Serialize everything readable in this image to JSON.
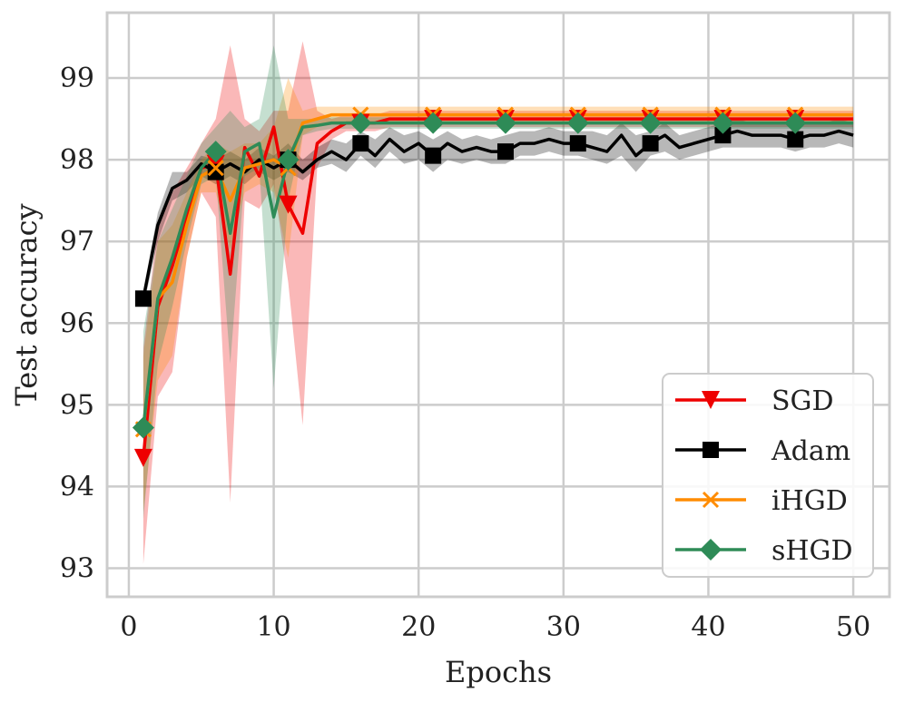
{
  "chart_data": {
    "type": "line",
    "title": "",
    "xlabel": "Epochs",
    "ylabel": "Test accuracy",
    "xlim": [
      -1.5,
      52.5
    ],
    "ylim": [
      92.65,
      99.8
    ],
    "xticks": [
      0,
      10,
      20,
      30,
      40,
      50
    ],
    "yticks": [
      93,
      94,
      95,
      96,
      97,
      98,
      99
    ],
    "grid": true,
    "legend": "lower-right",
    "x": [
      1,
      2,
      3,
      4,
      5,
      6,
      7,
      8,
      9,
      10,
      11,
      12,
      13,
      14,
      15,
      16,
      17,
      18,
      19,
      20,
      21,
      22,
      23,
      24,
      25,
      26,
      27,
      28,
      29,
      30,
      31,
      32,
      33,
      34,
      35,
      36,
      37,
      38,
      39,
      40,
      41,
      42,
      43,
      44,
      45,
      46,
      47,
      48,
      49,
      50
    ],
    "series": [
      {
        "name": "SGD",
        "color": "#ee0000",
        "marker": "triangle-down",
        "markevery": [
          1,
          6,
          11,
          16,
          21,
          26,
          31,
          36,
          41,
          46
        ],
        "values": [
          94.35,
          96.2,
          96.7,
          97.3,
          97.9,
          97.95,
          96.6,
          98.15,
          97.8,
          98.4,
          97.45,
          97.1,
          98.2,
          98.35,
          98.45,
          98.45,
          98.45,
          98.5,
          98.5,
          98.5,
          98.5,
          98.5,
          98.5,
          98.5,
          98.5,
          98.5,
          98.5,
          98.5,
          98.5,
          98.5,
          98.5,
          98.5,
          98.5,
          98.5,
          98.5,
          98.5,
          98.5,
          98.5,
          98.5,
          98.5,
          98.5,
          98.5,
          98.5,
          98.5,
          98.5,
          98.5,
          98.5,
          98.5,
          98.5,
          98.5
        ],
        "lower": [
          93.05,
          95.1,
          95.4,
          96.8,
          97.6,
          97.3,
          93.8,
          97.5,
          97.4,
          97.7,
          96.5,
          94.75,
          97.9,
          98.25,
          98.35,
          98.35,
          98.35,
          98.4,
          98.4,
          98.4,
          98.4,
          98.4,
          98.4,
          98.4,
          98.4,
          98.4,
          98.4,
          98.4,
          98.4,
          98.4,
          98.4,
          98.4,
          98.4,
          98.4,
          98.4,
          98.4,
          98.4,
          98.4,
          98.4,
          98.4,
          98.4,
          98.4,
          98.4,
          98.4,
          98.4,
          98.4,
          98.4,
          98.4,
          98.4,
          98.4
        ],
        "upper": [
          95.7,
          97.2,
          97.6,
          97.9,
          98.2,
          98.5,
          99.4,
          98.5,
          98.35,
          98.6,
          98.6,
          99.45,
          98.6,
          98.5,
          98.55,
          98.55,
          98.55,
          98.6,
          98.6,
          98.6,
          98.6,
          98.6,
          98.6,
          98.6,
          98.6,
          98.6,
          98.6,
          98.6,
          98.6,
          98.6,
          98.6,
          98.6,
          98.6,
          98.6,
          98.6,
          98.6,
          98.6,
          98.6,
          98.6,
          98.6,
          98.6,
          98.6,
          98.6,
          98.6,
          98.6,
          98.6,
          98.6,
          98.6,
          98.6,
          98.6
        ]
      },
      {
        "name": "Adam",
        "color": "#000000",
        "marker": "square",
        "markevery": [
          1,
          6,
          11,
          16,
          21,
          26,
          31,
          36,
          41,
          46
        ],
        "values": [
          96.3,
          97.2,
          97.65,
          97.75,
          97.95,
          97.85,
          97.95,
          97.85,
          98.0,
          97.9,
          98.0,
          97.85,
          98.0,
          98.1,
          98.0,
          98.2,
          98.05,
          98.25,
          98.1,
          98.2,
          98.05,
          98.2,
          98.1,
          98.15,
          98.1,
          98.1,
          98.2,
          98.2,
          98.25,
          98.2,
          98.2,
          98.15,
          98.1,
          98.3,
          98.05,
          98.2,
          98.3,
          98.15,
          98.2,
          98.25,
          98.3,
          98.35,
          98.3,
          98.3,
          98.3,
          98.25,
          98.3,
          98.3,
          98.35,
          98.3
        ],
        "lower": [
          96.2,
          97.0,
          97.5,
          97.6,
          97.8,
          97.7,
          97.8,
          97.7,
          97.85,
          97.75,
          97.85,
          97.75,
          97.9,
          97.95,
          97.85,
          98.05,
          97.9,
          98.1,
          97.95,
          98.0,
          97.85,
          98.0,
          97.95,
          98.0,
          97.95,
          97.95,
          98.05,
          98.05,
          98.1,
          98.05,
          98.05,
          98.0,
          97.95,
          98.05,
          97.85,
          98.05,
          98.1,
          98.0,
          98.05,
          98.1,
          98.15,
          98.15,
          98.15,
          98.15,
          98.15,
          98.1,
          98.15,
          98.15,
          98.2,
          98.15
        ],
        "upper": [
          96.4,
          97.35,
          97.85,
          97.85,
          98.05,
          98.0,
          98.1,
          98.0,
          98.15,
          98.05,
          98.2,
          98.0,
          98.15,
          98.25,
          98.2,
          98.35,
          98.25,
          98.4,
          98.3,
          98.35,
          98.25,
          98.35,
          98.25,
          98.3,
          98.25,
          98.3,
          98.35,
          98.35,
          98.4,
          98.35,
          98.35,
          98.35,
          98.3,
          98.45,
          98.3,
          98.35,
          98.45,
          98.3,
          98.35,
          98.4,
          98.45,
          98.5,
          98.45,
          98.45,
          98.45,
          98.4,
          98.45,
          98.45,
          98.5,
          98.45
        ]
      },
      {
        "name": "iHGD",
        "color": "#ff8c00",
        "marker": "x",
        "markevery": [
          1,
          6,
          11,
          16,
          21,
          26,
          31,
          36,
          41,
          46
        ],
        "values": [
          94.7,
          96.3,
          96.5,
          97.2,
          97.8,
          97.9,
          97.5,
          97.9,
          97.95,
          98.0,
          97.9,
          98.45,
          98.5,
          98.55,
          98.55,
          98.55,
          98.55,
          98.55,
          98.55,
          98.55,
          98.55,
          98.55,
          98.55,
          98.55,
          98.55,
          98.55,
          98.55,
          98.55,
          98.55,
          98.55,
          98.55,
          98.55,
          98.55,
          98.55,
          98.55,
          98.55,
          98.55,
          98.55,
          98.55,
          98.55,
          98.55,
          98.55,
          98.55,
          98.55,
          98.55,
          98.55,
          98.55,
          98.55,
          98.55,
          98.55
        ],
        "lower": [
          93.7,
          95.3,
          95.6,
          96.8,
          97.6,
          97.6,
          96.9,
          97.6,
          97.7,
          97.6,
          96.8,
          98.3,
          98.4,
          98.45,
          98.45,
          98.45,
          98.45,
          98.45,
          98.45,
          98.45,
          98.45,
          98.45,
          98.45,
          98.45,
          98.45,
          98.45,
          98.45,
          98.45,
          98.45,
          98.45,
          98.45,
          98.45,
          98.45,
          98.45,
          98.45,
          98.45,
          98.45,
          98.45,
          98.45,
          98.45,
          98.45,
          98.45,
          98.45,
          98.45,
          98.45,
          98.45,
          98.45,
          98.45,
          98.45,
          98.45
        ],
        "upper": [
          95.6,
          97.0,
          97.2,
          97.6,
          98.0,
          98.2,
          98.1,
          98.2,
          98.2,
          98.4,
          99.0,
          98.6,
          98.65,
          98.65,
          98.65,
          98.65,
          98.65,
          98.65,
          98.65,
          98.65,
          98.65,
          98.65,
          98.65,
          98.65,
          98.65,
          98.65,
          98.65,
          98.65,
          98.65,
          98.65,
          98.65,
          98.65,
          98.65,
          98.65,
          98.65,
          98.65,
          98.65,
          98.65,
          98.65,
          98.65,
          98.65,
          98.65,
          98.65,
          98.65,
          98.65,
          98.65,
          98.65,
          98.65,
          98.65,
          98.65
        ]
      },
      {
        "name": "sHGD",
        "color": "#2e8b57",
        "marker": "diamond",
        "markevery": [
          1,
          6,
          11,
          16,
          21,
          26,
          31,
          36,
          41,
          46
        ],
        "values": [
          94.72,
          96.3,
          96.8,
          97.4,
          97.9,
          98.1,
          97.1,
          98.1,
          98.2,
          97.3,
          98.0,
          98.4,
          98.42,
          98.45,
          98.45,
          98.45,
          98.45,
          98.45,
          98.45,
          98.45,
          98.45,
          98.45,
          98.45,
          98.45,
          98.45,
          98.45,
          98.45,
          98.45,
          98.45,
          98.45,
          98.45,
          98.45,
          98.45,
          98.45,
          98.45,
          98.45,
          98.45,
          98.45,
          98.45,
          98.45,
          98.45,
          98.45,
          98.45,
          98.45,
          98.45,
          98.45,
          98.45,
          98.45,
          98.45,
          98.45
        ],
        "lower": [
          93.6,
          95.5,
          96.2,
          97.0,
          97.7,
          97.8,
          95.5,
          97.8,
          97.9,
          95.2,
          97.5,
          98.3,
          98.35,
          98.38,
          98.38,
          98.38,
          98.38,
          98.38,
          98.38,
          98.38,
          98.38,
          98.38,
          98.38,
          98.38,
          98.38,
          98.38,
          98.38,
          98.38,
          98.38,
          98.38,
          98.38,
          98.38,
          98.38,
          98.38,
          98.38,
          98.38,
          98.38,
          98.38,
          98.38,
          98.38,
          98.38,
          98.38,
          98.38,
          98.38,
          98.38,
          98.38,
          98.38,
          98.38,
          98.38,
          98.38
        ],
        "upper": [
          95.9,
          97.0,
          97.4,
          97.8,
          98.2,
          98.4,
          98.6,
          98.4,
          98.5,
          99.4,
          98.5,
          98.5,
          98.5,
          98.52,
          98.52,
          98.52,
          98.52,
          98.52,
          98.52,
          98.52,
          98.52,
          98.52,
          98.52,
          98.52,
          98.52,
          98.52,
          98.52,
          98.52,
          98.52,
          98.52,
          98.52,
          98.52,
          98.52,
          98.52,
          98.52,
          98.52,
          98.52,
          98.52,
          98.52,
          98.52,
          98.52,
          98.52,
          98.52,
          98.52,
          98.52,
          98.52,
          98.52,
          98.52,
          98.52,
          98.52
        ]
      }
    ]
  }
}
